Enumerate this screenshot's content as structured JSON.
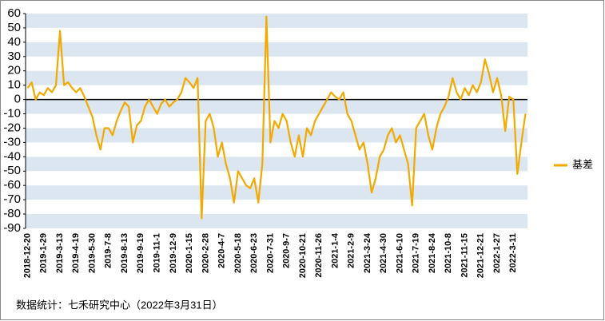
{
  "chart_data": {
    "type": "line",
    "categories": [
      "2018-12-20",
      null,
      null,
      null,
      "2019-1-29",
      null,
      null,
      null,
      "2019-3-13",
      null,
      null,
      null,
      "2019-4-19",
      null,
      null,
      null,
      "2019-5-30",
      null,
      null,
      null,
      "2019-7-8",
      null,
      null,
      null,
      "2019-8-13",
      null,
      null,
      null,
      "2019-9-19",
      null,
      null,
      null,
      "2019-11-1",
      null,
      null,
      null,
      "2019-12-9",
      null,
      null,
      null,
      "2020-1-15",
      null,
      null,
      null,
      "2020-2-28",
      null,
      null,
      null,
      "2020-4-7",
      null,
      null,
      null,
      "2020-5-18",
      null,
      null,
      null,
      "2020-6-23",
      null,
      null,
      null,
      "2020-7-31",
      null,
      null,
      null,
      "2020-9-7",
      null,
      null,
      null,
      "2020-10-21",
      null,
      null,
      null,
      "2020-11-26",
      null,
      null,
      null,
      "2021-1-4",
      null,
      null,
      null,
      "2021-2-9",
      null,
      null,
      null,
      "2021-3-24",
      null,
      null,
      null,
      "2021-4-30",
      null,
      null,
      null,
      "2021-6-10",
      null,
      null,
      null,
      "2021-7-19",
      null,
      null,
      null,
      "2021-8-24",
      null,
      null,
      null,
      "2021-10-8",
      null,
      null,
      null,
      "2021-11-15",
      null,
      null,
      null,
      "2021-12-21",
      null,
      null,
      null,
      "2022-1-27",
      null,
      null,
      null,
      "2022-3-11",
      null,
      null,
      null
    ],
    "series": [
      {
        "name": "基差",
        "color": "#f2a900",
        "values": [
          8,
          12,
          0,
          5,
          3,
          8,
          5,
          10,
          48,
          10,
          12,
          8,
          5,
          8,
          2,
          -5,
          -12,
          -25,
          -35,
          -20,
          -20,
          -25,
          -15,
          -8,
          -2,
          -5,
          -30,
          -18,
          -15,
          -5,
          0,
          -5,
          -10,
          -3,
          0,
          -5,
          -2,
          0,
          5,
          15,
          12,
          8,
          15,
          -83,
          -15,
          -10,
          -20,
          -40,
          -30,
          -45,
          -55,
          -72,
          -50,
          -55,
          -60,
          -62,
          -55,
          -72,
          -45,
          58,
          -30,
          -15,
          -20,
          -10,
          -15,
          -30,
          -40,
          -25,
          -40,
          -20,
          -25,
          -15,
          -10,
          -5,
          0,
          5,
          2,
          0,
          5,
          -10,
          -15,
          -25,
          -35,
          -30,
          -45,
          -65,
          -55,
          -40,
          -35,
          -25,
          -20,
          -30,
          -25,
          -35,
          -45,
          -74,
          -20,
          -15,
          -10,
          -25,
          -35,
          -20,
          -10,
          -5,
          2,
          15,
          5,
          0,
          8,
          3,
          10,
          5,
          12,
          28,
          18,
          5,
          15,
          3,
          -22,
          2,
          0,
          -52,
          -30,
          -10
        ]
      }
    ],
    "ylim": [
      -90,
      60
    ],
    "yticks": [
      60,
      50,
      40,
      30,
      20,
      10,
      0,
      -10,
      -20,
      -30,
      -40,
      -50,
      -60,
      -70,
      -80,
      -90
    ],
    "grid": "bands",
    "legend": "right",
    "source": "数据统计：七禾研究中心（2022年3月31日）"
  }
}
